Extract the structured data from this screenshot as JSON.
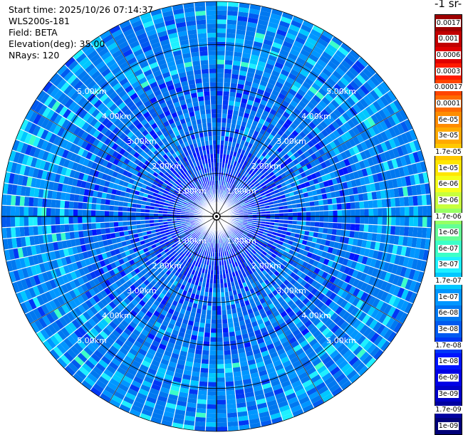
{
  "info": {
    "start_time": "Start time: 2025/10/26 07:14:37",
    "instrument": "WLS200s-181",
    "field": "Field: BETA",
    "elevation": "Elevation(deg): 35.00",
    "nrays": "NRays: 120"
  },
  "colorbar": {
    "title": "-1 sr-",
    "labels": [
      "0.0017",
      "0.001",
      "0.0006",
      "0.0003",
      "0.00017",
      "0.0001",
      "6e-05",
      "3e-05",
      "1.7e-05",
      "1e-05",
      "6e-06",
      "3e-06",
      "1.7e-06",
      "1e-06",
      "6e-07",
      "3e-07",
      "1.7e-07",
      "1e-07",
      "6e-08",
      "3e-08",
      "1.7e-08",
      "1e-08",
      "6e-09",
      "3e-09",
      "1.7e-09",
      "1e-09"
    ],
    "colors": [
      "#9e0000",
      "#c10000",
      "#e00000",
      "#ff1a00",
      "#ff4500",
      "#ff6a00",
      "#ff8c00",
      "#ffaa00",
      "#ffc800",
      "#ffe600",
      "#f5ff1a",
      "#c8ff3c",
      "#96ff64",
      "#64ff96",
      "#3cffc8",
      "#1ef0ff",
      "#00c8ff",
      "#0096ff",
      "#0078f0",
      "#005af0",
      "#0037f5",
      "#0014ff",
      "#0000e6",
      "#0000c8",
      "#0000a0",
      "#000078"
    ]
  },
  "chart_data": {
    "type": "heatmap",
    "projection": "polar PPI",
    "field": "BETA",
    "elevation_deg": 35.0,
    "nrays": 120,
    "range_rings_km": [
      1,
      2,
      3,
      4,
      5
    ],
    "ring_labels": [
      "1.00km",
      "2.00km",
      "3.00km",
      "4.00km",
      "5.00km"
    ],
    "max_range_km": 5.0,
    "color_scale": "log",
    "value_range": [
      1e-09,
      0.0017
    ],
    "dominant_value": 6e-08,
    "azimuth_gridlines_deg": [
      0,
      30,
      60,
      90,
      120,
      150,
      180,
      210,
      240,
      270,
      300,
      330
    ]
  }
}
